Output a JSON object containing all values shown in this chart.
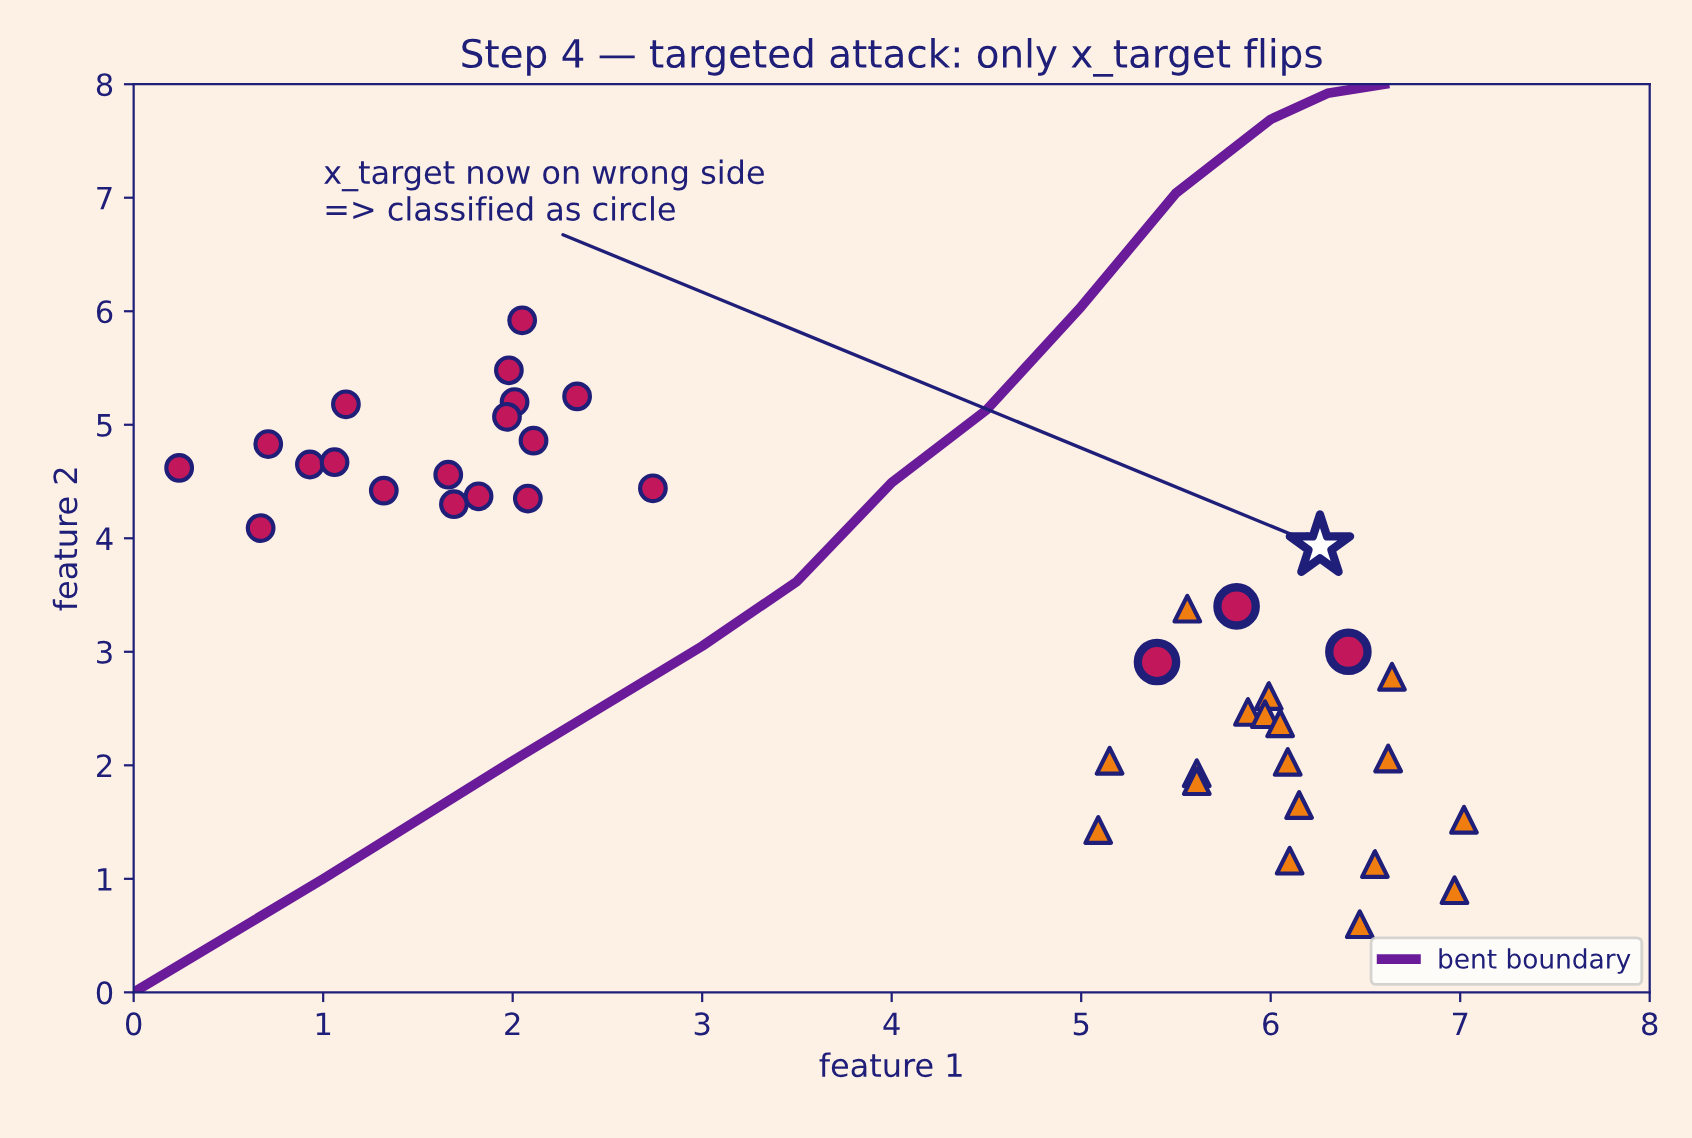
{
  "chart_data": {
    "type": "scatter",
    "title": "Step 4 — targeted attack: only x_target flips",
    "xlabel": "feature 1",
    "ylabel": "feature 2",
    "xlim": [
      0,
      8
    ],
    "ylim": [
      0,
      8
    ],
    "xticks": [
      0,
      1,
      2,
      3,
      4,
      5,
      6,
      7,
      8
    ],
    "yticks": [
      0,
      1,
      2,
      3,
      4,
      5,
      6,
      7,
      8
    ],
    "grid": false,
    "legend": "lower right",
    "annotations": [
      {
        "text": "x_target now on wrong side\n=> classified as circle",
        "x": 6.26,
        "y": 3.93
      }
    ],
    "series": [
      {
        "marker": "circle",
        "color": "#c2185b",
        "x": [
          0.24,
          0.71,
          0.67,
          0.93,
          1.06,
          1.12,
          1.32,
          1.66,
          1.69,
          1.82,
          1.98,
          2.01,
          1.97,
          2.05,
          2.11,
          2.08,
          2.34,
          2.74
        ],
        "values": [
          4.62,
          4.83,
          4.09,
          4.65,
          4.67,
          5.18,
          4.42,
          4.56,
          4.3,
          4.37,
          5.48,
          5.2,
          5.07,
          5.92,
          4.86,
          4.35,
          5.25,
          4.44
        ]
      },
      {
        "marker": "triangle",
        "color": "#ef7d0f",
        "x": [
          5.56,
          6.64,
          5.99,
          5.88,
          5.97,
          6.05,
          5.15,
          5.61,
          5.61,
          6.09,
          6.62,
          6.15,
          5.09,
          7.02,
          6.1,
          6.55,
          6.97,
          6.47
        ],
        "values": [
          3.38,
          2.78,
          2.61,
          2.47,
          2.45,
          2.37,
          2.04,
          1.93,
          1.86,
          2.03,
          2.06,
          1.65,
          1.43,
          1.52,
          1.16,
          1.13,
          0.9,
          0.6
        ]
      },
      {
        "marker": "circle",
        "color": "#c2185b",
        "x": [
          5.4,
          5.82,
          6.41
        ],
        "values": [
          2.91,
          3.4,
          3.0
        ]
      },
      {
        "marker": "star",
        "color": "#ffffff",
        "x": [
          6.26
        ],
        "values": [
          3.93
        ]
      },
      {
        "type": "line",
        "name": "bent boundary",
        "color": "#6a1b9a",
        "marker": "none",
        "line_style": "solid",
        "x": [
          0,
          1,
          2,
          3,
          3.5,
          4,
          4.5,
          5,
          5.5,
          6,
          6.3,
          6.6
        ],
        "values": [
          0,
          1.0,
          2.04,
          3.05,
          3.62,
          4.49,
          5.13,
          6.04,
          7.04,
          7.69,
          7.92,
          8.0
        ]
      }
    ]
  }
}
